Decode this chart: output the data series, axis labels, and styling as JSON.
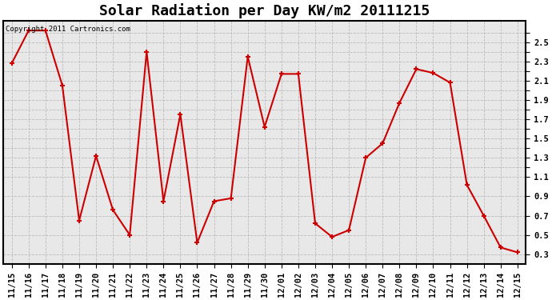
{
  "title": "Solar Radiation per Day KW/m2 20111215",
  "copyright": "Copyright 2011 Cartronics.com",
  "labels": [
    "11/15",
    "11/16",
    "11/17",
    "11/18",
    "11/19",
    "11/20",
    "11/21",
    "11/22",
    "11/23",
    "11/24",
    "11/25",
    "11/26",
    "11/27",
    "11/28",
    "11/29",
    "11/30",
    "12/01",
    "12/02",
    "12/03",
    "12/04",
    "12/05",
    "12/06",
    "12/07",
    "12/08",
    "12/09",
    "12/10",
    "12/11",
    "12/12",
    "12/13",
    "12/14",
    "12/15"
  ],
  "values": [
    2.28,
    2.62,
    2.62,
    2.05,
    0.65,
    1.32,
    0.76,
    0.5,
    2.4,
    0.85,
    1.75,
    0.42,
    0.85,
    0.88,
    2.35,
    1.62,
    2.17,
    2.17,
    0.62,
    0.48,
    0.55,
    1.3,
    1.45,
    1.87,
    2.22,
    2.18,
    2.08,
    1.02,
    0.7,
    0.37,
    0.32
  ],
  "line_color": "#cc0000",
  "marker": "+",
  "marker_size": 5,
  "marker_color": "#cc0000",
  "ylim": [
    0.2,
    2.72
  ],
  "yticks": [
    0.3,
    0.5,
    0.7,
    0.9,
    1.1,
    1.2,
    1.3,
    1.4,
    1.5,
    1.6,
    1.7,
    1.8,
    1.9,
    2.0,
    2.1,
    2.2,
    2.3,
    2.4,
    2.5,
    2.6
  ],
  "ytick_labels": [
    "0.3",
    "0.5",
    "0.7",
    "0.9",
    "1.1",
    "",
    "1.3",
    "",
    "1.5",
    "",
    "1.7",
    "",
    "1.9",
    "",
    "2.1",
    "",
    "2.3",
    "",
    "2.5",
    ""
  ],
  "grid_color": "#bbbbbb",
  "bg_color": "#ffffff",
  "plot_bg_color": "#e8e8e8",
  "title_fontsize": 13,
  "tick_fontsize": 7.5,
  "copyright_fontsize": 6.5,
  "linewidth": 1.5
}
